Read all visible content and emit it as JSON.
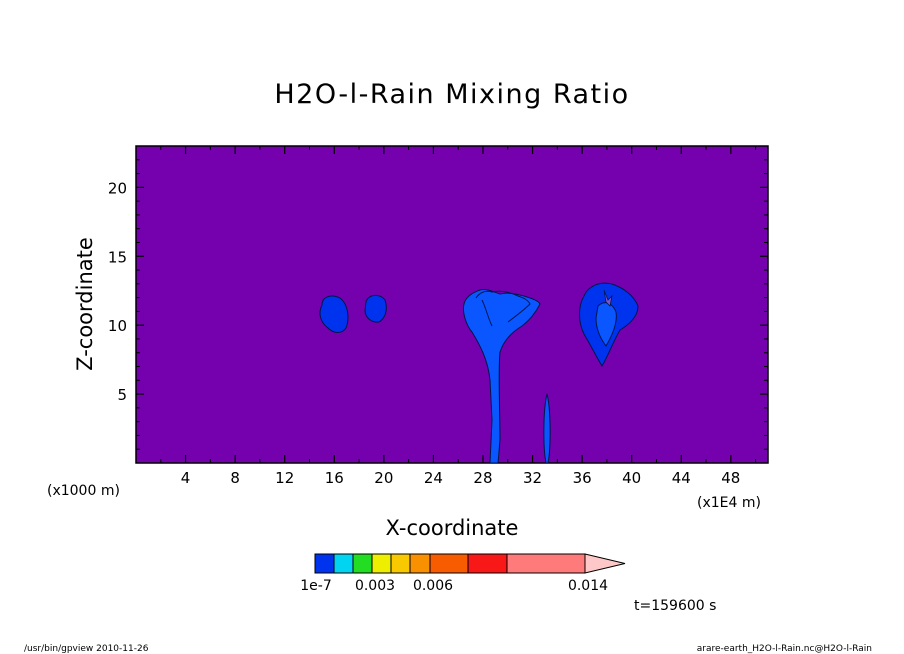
{
  "chart_data": {
    "type": "heatmap",
    "title": "H2O-l-Rain Mixing Ratio",
    "xlabel": "X-coordinate",
    "ylabel": "Z-coordinate",
    "x_unit_left": "(x1000 m)",
    "x_unit_right": "(x1E4 m)",
    "xlim": [
      0,
      51
    ],
    "ylim": [
      0,
      23
    ],
    "x_ticks": [
      4,
      8,
      12,
      16,
      20,
      24,
      28,
      32,
      36,
      40,
      44,
      48
    ],
    "y_ticks": [
      5,
      10,
      15,
      20
    ],
    "background_color": "#7400AE",
    "colorbar": {
      "colors": [
        "#0033EE",
        "#00D4F0",
        "#22DD22",
        "#EEEE00",
        "#F8C800",
        "#F89000",
        "#F85C00",
        "#F81818",
        "#FF7A7A",
        "#FFC8C8"
      ],
      "labels": [
        "1e-7",
        "0.003",
        "0.006",
        "0.014"
      ]
    },
    "features": [
      {
        "name": "cloud blob near x=16",
        "x_center": 16.3,
        "z_center": 10.7,
        "max_level": "1e-7"
      },
      {
        "name": "cloud blob near x=19.5",
        "x_center": 19.5,
        "z_center": 11.0,
        "max_level": "1e-7"
      },
      {
        "name": "rain shaft with anvil near x=29",
        "x_center": 29.2,
        "z_range": [
          0,
          12.5
        ],
        "max_level": "1e-7"
      },
      {
        "name": "thin shaft near x=33.3",
        "x_center": 33.3,
        "z_range": [
          0,
          5
        ],
        "max_level": "1e-7"
      },
      {
        "name": "convective cell near x=38",
        "x_center": 38.2,
        "z_center": 10.5,
        "max_level": "1e-7"
      }
    ],
    "time_label": "t=159600 s"
  },
  "footer": {
    "left": "/usr/bin/gpview   2010-11-26",
    "right": "arare-earth_H2O-l-Rain.nc@H2O-l-Rain"
  }
}
